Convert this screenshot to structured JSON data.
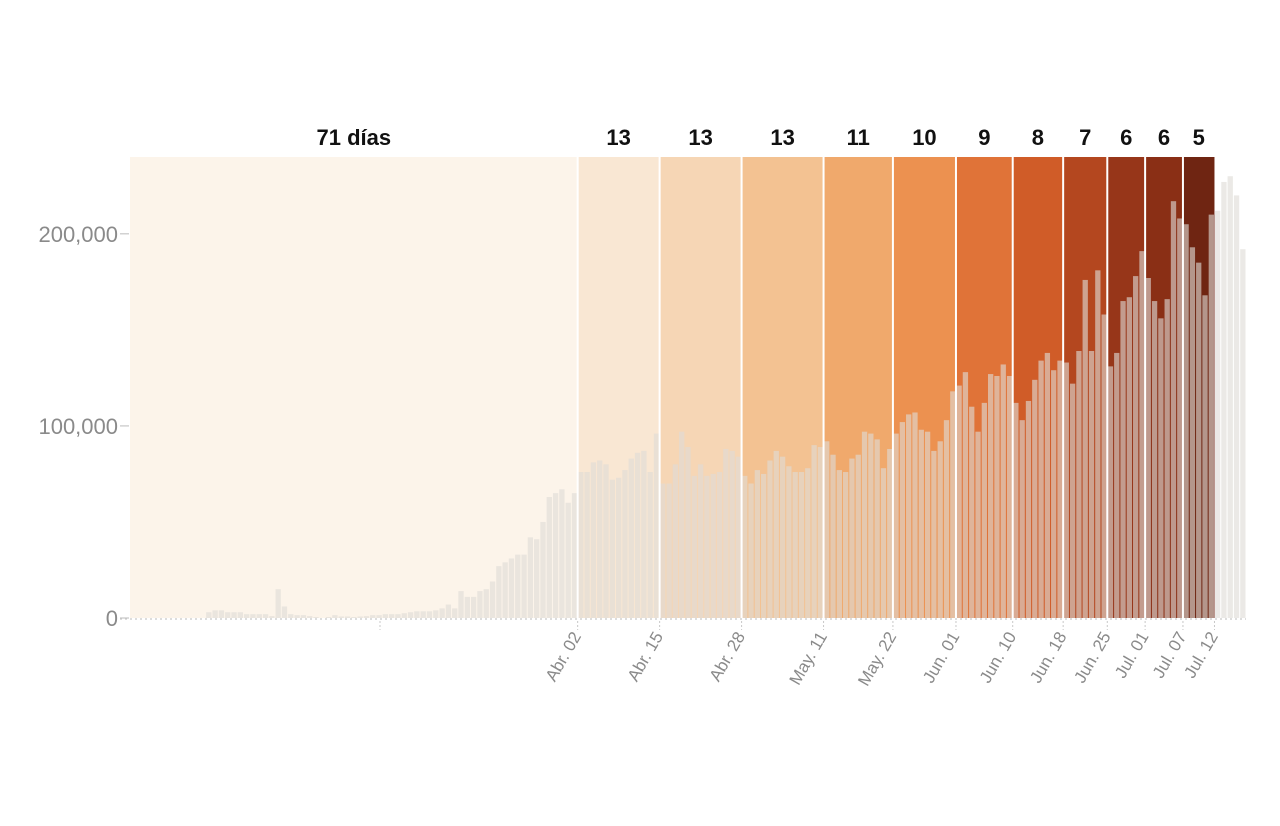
{
  "chart_data": {
    "type": "bar",
    "title": "",
    "xlabel": "",
    "ylabel": "",
    "ylim": [
      0,
      240000
    ],
    "y_ticks": [
      {
        "value": 0,
        "label": "0"
      },
      {
        "value": 100000,
        "label": "100,000"
      },
      {
        "value": 200000,
        "label": "200,000"
      }
    ],
    "x_ticks": [
      {
        "label": "Abr. 02",
        "day": 71
      },
      {
        "label": "Abr. 15",
        "day": 84
      },
      {
        "label": "Abr. 28",
        "day": 97
      },
      {
        "label": "May. 11",
        "day": 110
      },
      {
        "label": "May. 22",
        "day": 121
      },
      {
        "label": "Jun. 01",
        "day": 131
      },
      {
        "label": "Jun. 10",
        "day": 140
      },
      {
        "label": "Jun. 18",
        "day": 148
      },
      {
        "label": "Jun. 25",
        "day": 155
      },
      {
        "label": "Jul. 01",
        "day": 161
      },
      {
        "label": "Jul. 07",
        "day": 167
      },
      {
        "label": "Jul. 12",
        "day": 172
      }
    ],
    "segments": [
      {
        "label": "71 días",
        "start": 0,
        "days": 71,
        "color": "#fcf4ea"
      },
      {
        "label": "13",
        "start": 71,
        "days": 13,
        "color": "#f9e7d3"
      },
      {
        "label": "13",
        "start": 84,
        "days": 13,
        "color": "#f6d6b5"
      },
      {
        "label": "13",
        "start": 97,
        "days": 13,
        "color": "#f3c292"
      },
      {
        "label": "11",
        "start": 110,
        "days": 11,
        "color": "#f0a96c"
      },
      {
        "label": "10",
        "start": 121,
        "days": 10,
        "color": "#ec9150"
      },
      {
        "label": "9",
        "start": 131,
        "days": 9,
        "color": "#e07338"
      },
      {
        "label": "8",
        "start": 140,
        "days": 8,
        "color": "#d05c28"
      },
      {
        "label": "7",
        "start": 148,
        "days": 7,
        "color": "#b4471f"
      },
      {
        "label": "6",
        "start": 155,
        "days": 6,
        "color": "#973619"
      },
      {
        "label": "6",
        "start": 161,
        "days": 6,
        "color": "#8a2f15"
      },
      {
        "label": "5",
        "start": 167,
        "days": 5,
        "color": "#6f2512"
      }
    ],
    "bar_color": "#dedcd6",
    "bar_opacity": 0.62,
    "values": [
      0,
      0,
      0,
      0,
      0,
      0,
      0,
      0,
      0,
      0,
      0,
      0,
      3000,
      4000,
      4000,
      3000,
      3000,
      3000,
      2000,
      2000,
      2000,
      2000,
      1000,
      15000,
      6000,
      2000,
      1500,
      1500,
      1000,
      500,
      0,
      500,
      1500,
      800,
      800,
      500,
      800,
      1000,
      1500,
      1500,
      2000,
      2000,
      2000,
      2500,
      3000,
      3500,
      3500,
      3500,
      4000,
      5000,
      7000,
      5000,
      14000,
      11000,
      11000,
      14000,
      15000,
      19000,
      27000,
      29000,
      31000,
      33000,
      33000,
      42000,
      41000,
      50000,
      63000,
      65000,
      67000,
      60000,
      65000,
      76000,
      76000,
      81000,
      82000,
      80000,
      72000,
      73000,
      77000,
      83000,
      86000,
      87000,
      76000,
      96000,
      70000,
      70000,
      80000,
      97000,
      89000,
      74000,
      80000,
      74000,
      75000,
      76000,
      88000,
      87000,
      84000,
      74000,
      70000,
      77000,
      75000,
      82000,
      87000,
      84000,
      79000,
      76000,
      76000,
      78000,
      90000,
      89000,
      92000,
      85000,
      77000,
      76000,
      83000,
      85000,
      97000,
      96000,
      93000,
      78000,
      88000,
      96000,
      102000,
      106000,
      107000,
      98000,
      97000,
      87000,
      92000,
      103000,
      118000,
      121000,
      128000,
      110000,
      97000,
      112000,
      127000,
      126000,
      132000,
      126000,
      112000,
      103000,
      113000,
      124000,
      134000,
      138000,
      129000,
      134000,
      133000,
      122000,
      139000,
      176000,
      139000,
      181000,
      158000,
      131000,
      138000,
      165000,
      167000,
      178000,
      191000,
      177000,
      165000,
      156000,
      166000,
      217000,
      208000,
      205000,
      193000,
      185000,
      168000,
      210000,
      212000,
      227000,
      230000,
      220000,
      192000
    ]
  }
}
